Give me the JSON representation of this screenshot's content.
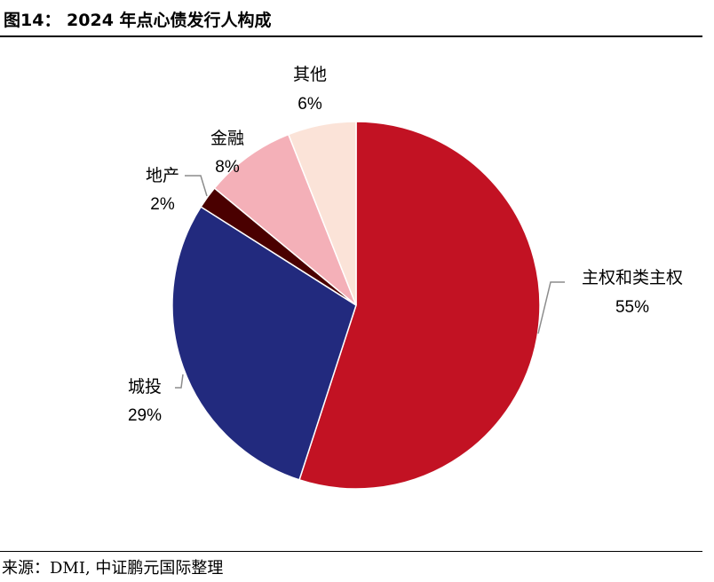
{
  "figure": {
    "title": "图14： 2024 年点心债发行人构成",
    "source": "来源：DMI, 中证鹏元国际整理"
  },
  "chart_data": {
    "type": "pie",
    "title": "",
    "start_angle_deg": 0,
    "direction": "clockwise",
    "slices": [
      {
        "name": "主权和类主权",
        "value": 55,
        "label": "55%",
        "color": "#c21223"
      },
      {
        "name": "城投",
        "value": 29,
        "label": "29%",
        "color": "#222a7e"
      },
      {
        "name": "地产",
        "value": 2,
        "label": "2%",
        "color": "#4a0000"
      },
      {
        "name": "金融",
        "value": 8,
        "label": "8%",
        "color": "#f4b0b8"
      },
      {
        "name": "其他",
        "value": 6,
        "label": "6%",
        "color": "#fbe3d8"
      }
    ]
  }
}
